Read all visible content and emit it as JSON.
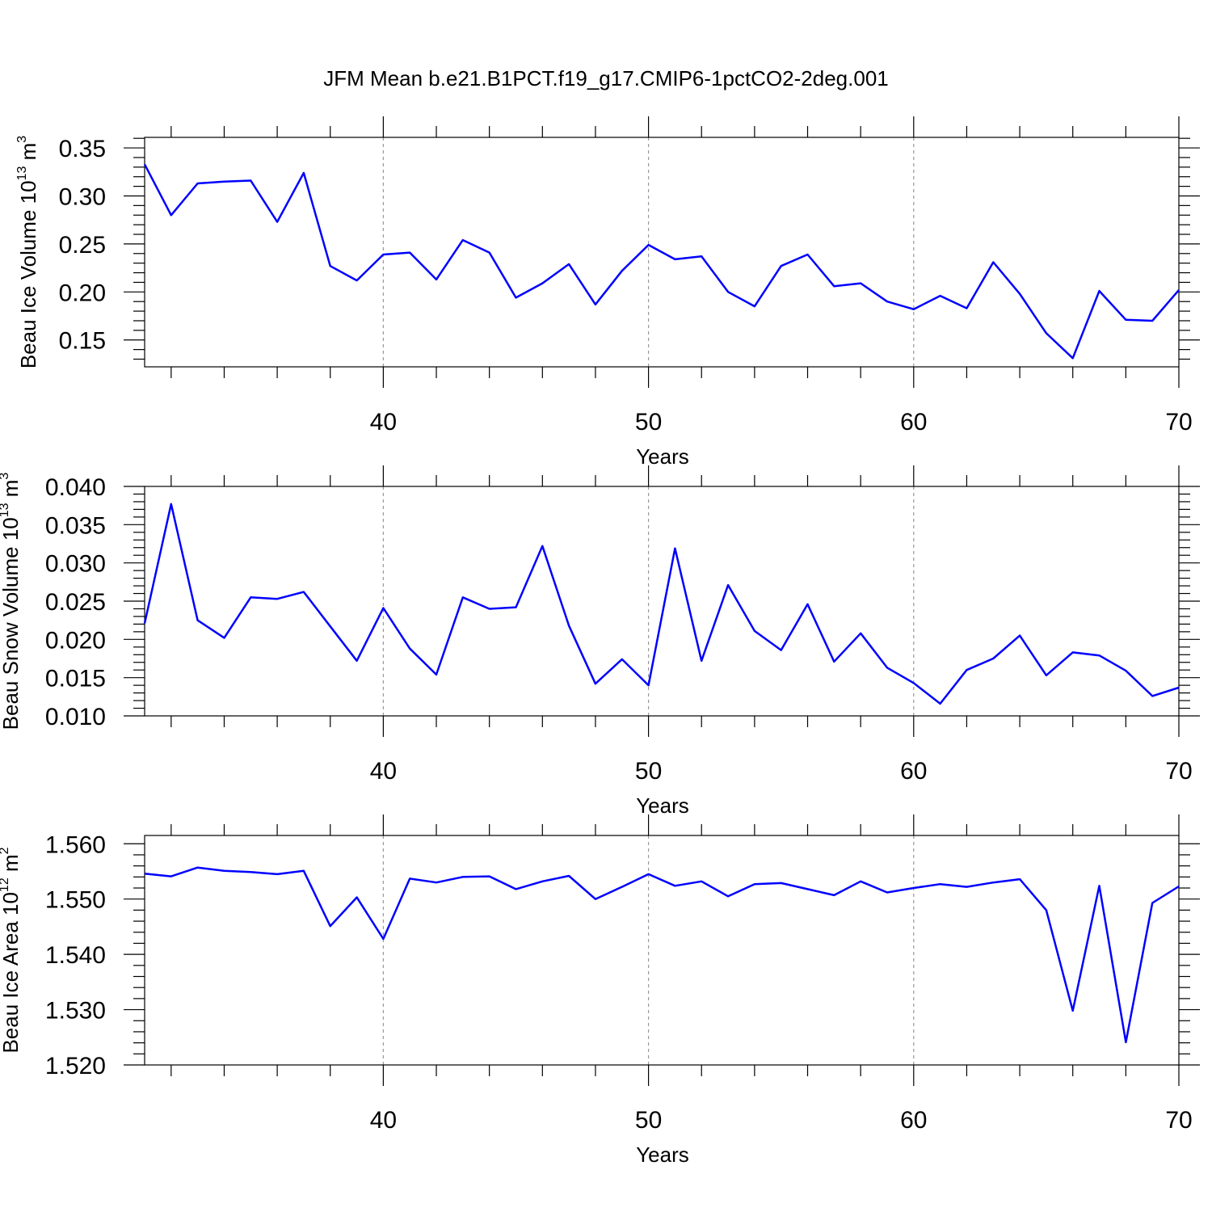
{
  "figure": {
    "title": "JFM Mean b.e21.B1PCT.f19_g17.CMIP6-1pctCO2-2deg.001",
    "line_color": "#0000ff",
    "grid_color": "#999999"
  },
  "chart_data": [
    {
      "type": "line",
      "ylabel": "Beau Ice Volume 10",
      "ylabel_sup": "13",
      "ylabel_unit": "m",
      "ylabel_unit_sup": "3",
      "xlabel": "Years",
      "xlim": [
        31,
        70
      ],
      "ylim": [
        0.122,
        0.361
      ],
      "yticks": [
        0.15,
        0.2,
        0.25,
        0.3,
        0.35
      ],
      "ytick_labels": [
        "0.15",
        "0.20",
        "0.25",
        "0.30",
        "0.35"
      ],
      "xticks": [
        40,
        50,
        60,
        70
      ],
      "xtick_labels": [
        "40",
        "50",
        "60",
        "70"
      ],
      "grid_x": [
        40,
        50,
        60
      ],
      "x": [
        31,
        32,
        33,
        34,
        35,
        36,
        37,
        38,
        39,
        40,
        41,
        42,
        43,
        44,
        45,
        46,
        47,
        48,
        49,
        50,
        51,
        52,
        53,
        54,
        55,
        56,
        57,
        58,
        59,
        60,
        61,
        62,
        63,
        64,
        65,
        66,
        67,
        68,
        69,
        70
      ],
      "series": [
        {
          "values": [
            0.333,
            0.28,
            0.313,
            0.315,
            0.316,
            0.273,
            0.324,
            0.227,
            0.212,
            0.239,
            0.241,
            0.213,
            0.254,
            0.241,
            0.194,
            0.209,
            0.229,
            0.187,
            0.222,
            0.249,
            0.234,
            0.237,
            0.2,
            0.185,
            0.227,
            0.239,
            0.206,
            0.209,
            0.19,
            0.182,
            0.196,
            0.183,
            0.231,
            0.198,
            0.157,
            0.131,
            0.201,
            0.171,
            0.17,
            0.202
          ]
        }
      ]
    },
    {
      "type": "line",
      "ylabel": "Beau Snow Volume 10",
      "ylabel_sup": "13",
      "ylabel_unit": "m",
      "ylabel_unit_sup": "3",
      "xlabel": "Years",
      "xlim": [
        31,
        70
      ],
      "ylim": [
        0.01,
        0.04
      ],
      "yticks": [
        0.01,
        0.015,
        0.02,
        0.025,
        0.03,
        0.035,
        0.04
      ],
      "ytick_labels": [
        "0.010",
        "0.015",
        "0.020",
        "0.025",
        "0.030",
        "0.035",
        "0.040"
      ],
      "xticks": [
        40,
        50,
        60,
        70
      ],
      "xtick_labels": [
        "40",
        "50",
        "60",
        "70"
      ],
      "grid_x": [
        40,
        50,
        60
      ],
      "x": [
        31,
        32,
        33,
        34,
        35,
        36,
        37,
        38,
        39,
        40,
        41,
        42,
        43,
        44,
        45,
        46,
        47,
        48,
        49,
        50,
        51,
        52,
        53,
        54,
        55,
        56,
        57,
        58,
        59,
        60,
        61,
        62,
        63,
        64,
        65,
        66,
        67,
        68,
        69,
        70
      ],
      "series": [
        {
          "values": [
            0.0221,
            0.0377,
            0.0225,
            0.0202,
            0.0255,
            0.0253,
            0.0262,
            0.0217,
            0.0172,
            0.0241,
            0.0188,
            0.0154,
            0.0255,
            0.024,
            0.0242,
            0.0322,
            0.0218,
            0.0142,
            0.0174,
            0.014,
            0.0319,
            0.0172,
            0.0271,
            0.0211,
            0.0186,
            0.0246,
            0.0171,
            0.0208,
            0.0163,
            0.0143,
            0.0116,
            0.016,
            0.0175,
            0.0205,
            0.0153,
            0.0183,
            0.0179,
            0.0159,
            0.0126,
            0.0137
          ]
        }
      ]
    },
    {
      "type": "line",
      "ylabel": "Beau Ice Area 10",
      "ylabel_sup": "12",
      "ylabel_unit": "m",
      "ylabel_unit_sup": "2",
      "xlabel": "Years",
      "xlim": [
        31,
        70
      ],
      "ylim": [
        1.52,
        1.5615
      ],
      "yticks": [
        1.52,
        1.53,
        1.54,
        1.55,
        1.56
      ],
      "ytick_labels": [
        "1.520",
        "1.530",
        "1.540",
        "1.550",
        "1.560"
      ],
      "xticks": [
        40,
        50,
        60,
        70
      ],
      "xtick_labels": [
        "40",
        "50",
        "60",
        "70"
      ],
      "grid_x": [
        40,
        50,
        60
      ],
      "x": [
        31,
        32,
        33,
        34,
        35,
        36,
        37,
        38,
        39,
        40,
        41,
        42,
        43,
        44,
        45,
        46,
        47,
        48,
        49,
        50,
        51,
        52,
        53,
        54,
        55,
        56,
        57,
        58,
        59,
        60,
        61,
        62,
        63,
        64,
        65,
        66,
        67,
        68,
        69,
        70
      ],
      "series": [
        {
          "values": [
            1.5546,
            1.5541,
            1.5557,
            1.5551,
            1.5549,
            1.5545,
            1.5551,
            1.5451,
            1.5503,
            1.5428,
            1.5537,
            1.553,
            1.554,
            1.5541,
            1.5518,
            1.5532,
            1.5542,
            1.55,
            1.5522,
            1.5545,
            1.5524,
            1.5532,
            1.5505,
            1.5527,
            1.5529,
            1.5518,
            1.5507,
            1.5532,
            1.5512,
            1.552,
            1.5527,
            1.5522,
            1.553,
            1.5536,
            1.548,
            1.5298,
            1.5524,
            1.5241,
            1.5493,
            1.5523
          ]
        }
      ]
    }
  ]
}
